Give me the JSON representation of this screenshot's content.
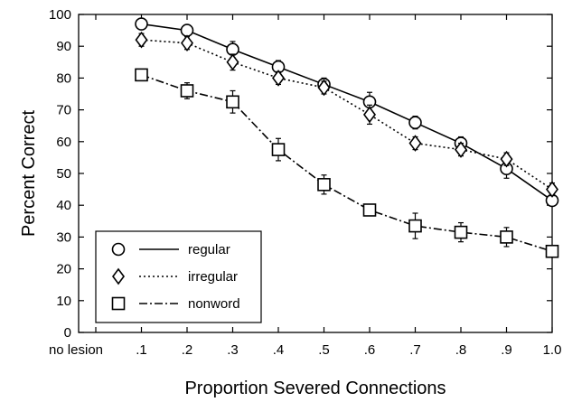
{
  "chart_data": {
    "type": "line",
    "xlabel": "Proportion Severed Connections",
    "ylabel": "Percent Correct",
    "categories": [
      "no lesion",
      ".1",
      ".2",
      ".3",
      ".4",
      ".5",
      ".6",
      ".7",
      ".8",
      ".9",
      "1.0"
    ],
    "ylim": [
      0,
      100
    ],
    "yticks": [
      0,
      10,
      20,
      30,
      40,
      50,
      60,
      70,
      80,
      90,
      100
    ],
    "grid": false,
    "legend_position": "bottom-left",
    "series": [
      {
        "name": "regular",
        "marker": "circle",
        "line_style": "solid",
        "values": [
          null,
          97,
          95,
          89,
          83.5,
          78,
          72.5,
          66,
          59.5,
          51.5,
          41.5
        ],
        "errors": [
          null,
          1.5,
          1.5,
          2.5,
          2,
          2,
          3,
          2,
          2,
          3,
          1.5
        ]
      },
      {
        "name": "irregular",
        "marker": "diamond",
        "line_style": "dotted",
        "values": [
          null,
          92,
          91,
          85,
          80,
          77,
          68.5,
          59.5,
          57.5,
          54.5,
          45
        ],
        "errors": [
          null,
          2,
          2,
          2.5,
          2,
          2,
          3,
          2,
          2,
          2,
          2
        ]
      },
      {
        "name": "nonword",
        "marker": "square",
        "line_style": "dashed",
        "values": [
          null,
          81,
          76,
          72.5,
          57.5,
          46.5,
          38.5,
          33.5,
          31.5,
          30,
          25.5
        ],
        "errors": [
          null,
          1.5,
          2.5,
          3.5,
          3.5,
          3,
          1.5,
          4,
          3,
          3,
          1.5
        ]
      }
    ]
  }
}
